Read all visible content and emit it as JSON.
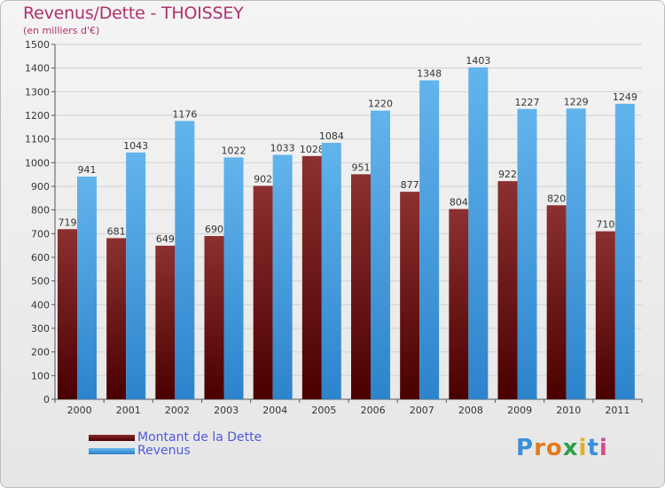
{
  "page": {
    "title": "Revenus/Dette - THOISSEY",
    "subtitle": "(en milliers d'€)"
  },
  "chart_data": {
    "type": "bar",
    "categories": [
      "2000",
      "2001",
      "2002",
      "2003",
      "2004",
      "2005",
      "2006",
      "2007",
      "2008",
      "2009",
      "2010",
      "2011"
    ],
    "series": [
      {
        "name": "Montant de la Dette",
        "color": "#7a1d1d",
        "values": [
          719,
          681,
          649,
          690,
          902,
          1028,
          951,
          877,
          804,
          922,
          820,
          710
        ]
      },
      {
        "name": "Revenus",
        "color": "#4da3e0",
        "values": [
          941,
          1043,
          1176,
          1022,
          1033,
          1084,
          1220,
          1348,
          1403,
          1227,
          1229,
          1249
        ]
      }
    ],
    "ylim": [
      0,
      1500
    ],
    "yticks": [
      0,
      100,
      200,
      300,
      400,
      500,
      600,
      700,
      800,
      900,
      1000,
      1100,
      1200,
      1300,
      1400,
      1500
    ],
    "grid": true,
    "legend_position": "bottom-left"
  },
  "legend": {
    "items": [
      {
        "label": "Montant de la Dette",
        "color": "#6a0c0c"
      },
      {
        "label": "Revenus",
        "color": "#4da3e0"
      }
    ]
  },
  "logo": {
    "letters": [
      "P",
      "r",
      "o",
      "x",
      "i",
      "t",
      "i"
    ],
    "colors": [
      "#3a8fd8",
      "#e27a1e",
      "#e27a1e",
      "#2aa04a",
      "#e2b01e",
      "#3a8fd8",
      "#d84a8a"
    ]
  }
}
